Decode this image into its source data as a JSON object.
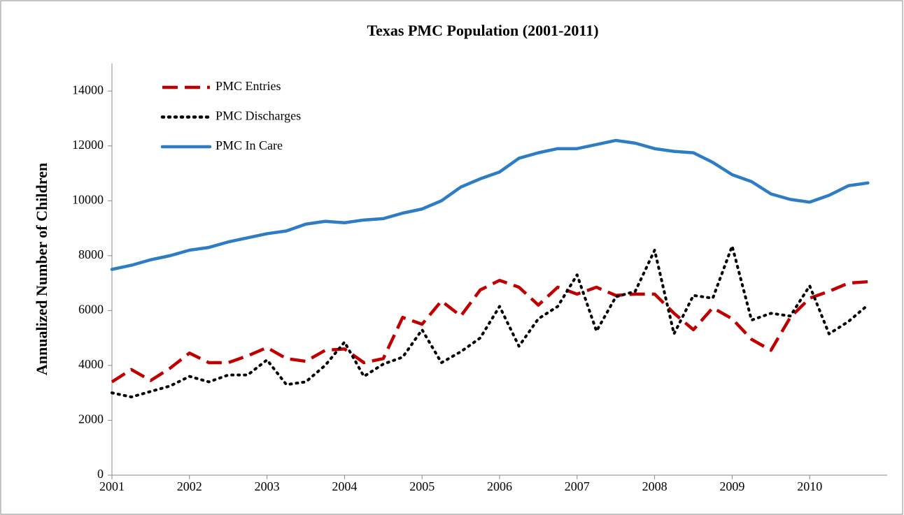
{
  "chart_data": {
    "type": "line",
    "title": "Texas PMC Population (2001-2011)",
    "y_label": "Annualized Number of Children",
    "x": [
      2001,
      2001.25,
      2001.5,
      2001.75,
      2002,
      2002.25,
      2002.5,
      2002.75,
      2003,
      2003.25,
      2003.5,
      2003.75,
      2004,
      2004.25,
      2004.5,
      2004.75,
      2005,
      2005.25,
      2005.5,
      2005.75,
      2006,
      2006.25,
      2006.5,
      2006.75,
      2007,
      2007.25,
      2007.5,
      2007.75,
      2008,
      2008.25,
      2008.5,
      2008.75,
      2009,
      2009.25,
      2009.5,
      2009.75,
      2010,
      2010.25,
      2010.5,
      2010.75
    ],
    "series": [
      {
        "name": "PMC Entries",
        "color": "#c00000",
        "dash": "dashed",
        "values": [
          3400,
          3850,
          3450,
          3900,
          4450,
          4100,
          4100,
          4350,
          4650,
          4250,
          4150,
          4550,
          4600,
          4100,
          4250,
          5750,
          5500,
          6350,
          5800,
          6750,
          7100,
          6850,
          6200,
          6850,
          6600,
          6850,
          6550,
          6600,
          6600,
          5900,
          5300,
          6100,
          5700,
          4950,
          4550,
          5750,
          6450,
          6700,
          7000,
          7050
        ]
      },
      {
        "name": "PMC Discharges",
        "color": "#000000",
        "dash": "dotted",
        "values": [
          3000,
          2850,
          3050,
          3250,
          3600,
          3400,
          3650,
          3650,
          4200,
          3300,
          3400,
          4000,
          4850,
          3600,
          4050,
          4300,
          5300,
          4100,
          4500,
          5000,
          6150,
          4700,
          5700,
          6150,
          7300,
          5250,
          6500,
          6700,
          8200,
          5150,
          6550,
          6450,
          8350,
          5650,
          5900,
          5800,
          6900,
          5150,
          5600,
          6200
        ]
      },
      {
        "name": "PMC In Care",
        "color": "#2e7dc4",
        "dash": "solid",
        "values": [
          7500,
          7650,
          7850,
          8000,
          8200,
          8300,
          8500,
          8650,
          8800,
          8900,
          9150,
          9250,
          9200,
          9300,
          9350,
          9550,
          9700,
          10000,
          10500,
          10800,
          11050,
          11550,
          11750,
          11900,
          11900,
          12050,
          12200,
          12100,
          11900,
          11800,
          11750,
          11400,
          10950,
          10700,
          10250,
          10050,
          9950,
          10200,
          10550,
          10650
        ]
      }
    ],
    "xlim": [
      2001,
      2011
    ],
    "xticks": [
      2001,
      2002,
      2003,
      2004,
      2005,
      2006,
      2007,
      2008,
      2009,
      2010
    ],
    "ylim": [
      0,
      15000
    ],
    "yticks": [
      0,
      2000,
      4000,
      6000,
      8000,
      10000,
      12000,
      14000
    ],
    "legend": "upper left"
  }
}
